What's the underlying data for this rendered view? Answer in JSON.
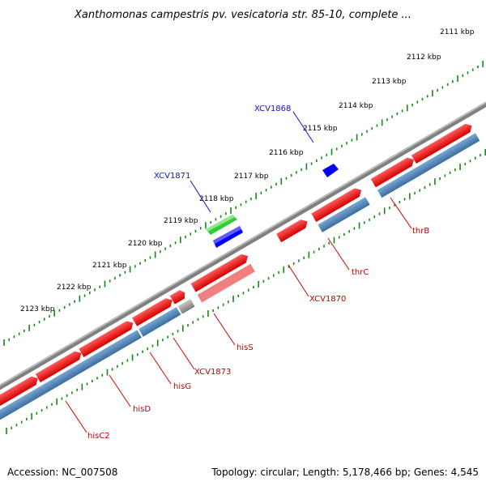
{
  "title": "Xanthomonas campestris pv. vesicatoria str. 85-10, complete ...",
  "ticks": [
    "2111 kbp",
    "2112 kbp",
    "2113 kbp",
    "2114 kbp",
    "2115 kbp",
    "2116 kbp",
    "2117 kbp",
    "2118 kbp",
    "2119 kbp",
    "2120 kbp",
    "2121 kbp",
    "2122 kbp",
    "2123 kbp"
  ],
  "genes": {
    "thrB": "thrB",
    "thrC": "thrC",
    "xcv1870": "XCV1870",
    "hisS": "hisS",
    "xcv1873": "XCV1873",
    "hisG": "hisG",
    "hisD": "hisD",
    "hisC2": "hisC2",
    "xcv1868": "XCV1868",
    "xcv1871": "XCV1871"
  },
  "footer": {
    "accession": "Accession: NC_007508",
    "summary": "Topology: circular; Length: 5,178,466 bp; Genes: 4,545"
  },
  "colors": {
    "cds_red": "#ff0000",
    "gene_blue": "#4682b4",
    "misc_blue": "#0000ff",
    "misc_green": "#33cc33",
    "tick_green": "#138a13",
    "backbone": "#808080",
    "label_red": "#c00000",
    "label_blue": "#1010cc"
  }
}
